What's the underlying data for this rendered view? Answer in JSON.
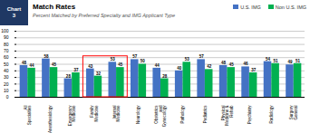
{
  "chart_data": {
    "type": "bar",
    "title": "Match Rates",
    "subtitle": "Percent Matched by Preferred Specialty and IMG Applicant Type",
    "annotation": "Chart\n3",
    "categories": [
      "All\nSpecialties",
      "Anesthesiology",
      "Emergency\nMedicine",
      "Family\nMedicine",
      "Internal\nMedicine",
      "Neurology",
      "Obstetrics\nand\nGynecology",
      "Pathology",
      "Pediatrics",
      "Physical\nMedicine &\nRehab",
      "Psychiatry",
      "Radiology",
      "Surgery\nGeneral"
    ],
    "series": [
      {
        "name": "U.S. IMG",
        "color": "#4472c4",
        "values": [
          48,
          58,
          28,
          43,
          53,
          57,
          44,
          40,
          57,
          48,
          46,
          54,
          49
        ]
      },
      {
        "name": "Non U.S. IMG",
        "color": "#00b050",
        "values": [
          44,
          45,
          37,
          32,
          45,
          50,
          28,
          53,
          42,
          45,
          37,
          51,
          51
        ]
      }
    ],
    "highlight": {
      "categories": [
        "Family\nMedicine",
        "Internal\nMedicine"
      ],
      "ylim": [
        0,
        62
      ],
      "color": "#ff0000"
    },
    "ylim": [
      0,
      100
    ],
    "yticks": [
      0,
      10,
      20,
      30,
      40,
      50,
      60,
      70,
      80,
      90,
      100
    ],
    "grid": true,
    "legend": "top",
    "data_labels": true
  }
}
